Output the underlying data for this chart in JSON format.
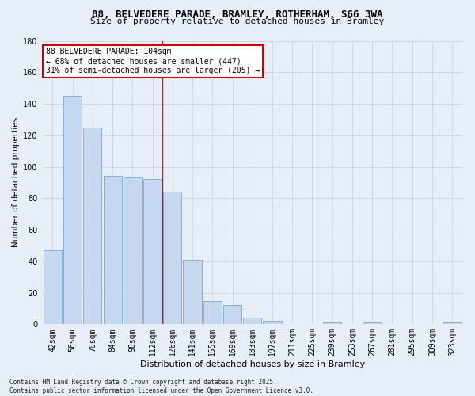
{
  "title1": "88, BELVEDERE PARADE, BRAMLEY, ROTHERHAM, S66 3WA",
  "title2": "Size of property relative to detached houses in Bramley",
  "xlabel": "Distribution of detached houses by size in Bramley",
  "ylabel": "Number of detached properties",
  "categories": [
    "42sqm",
    "56sqm",
    "70sqm",
    "84sqm",
    "98sqm",
    "112sqm",
    "126sqm",
    "141sqm",
    "155sqm",
    "169sqm",
    "183sqm",
    "197sqm",
    "211sqm",
    "225sqm",
    "239sqm",
    "253sqm",
    "267sqm",
    "281sqm",
    "295sqm",
    "309sqm",
    "323sqm"
  ],
  "values": [
    47,
    145,
    125,
    94,
    93,
    92,
    84,
    41,
    15,
    12,
    4,
    2,
    0,
    0,
    1,
    0,
    1,
    0,
    0,
    0,
    1
  ],
  "bar_color": "#c5d8f0",
  "bar_edge_color": "#7aa8d0",
  "grid_color": "#c8d4e4",
  "background_color": "#e8eef8",
  "red_line_x": 5.5,
  "annotation_text": "88 BELVEDERE PARADE: 104sqm\n← 68% of detached houses are smaller (447)\n31% of semi-detached houses are larger (205) →",
  "annotation_box_color": "#ffffff",
  "annotation_box_edge": "#cc0000",
  "footnote": "Contains HM Land Registry data © Crown copyright and database right 2025.\nContains public sector information licensed under the Open Government Licence v3.0.",
  "ylim": [
    0,
    180
  ],
  "yticks": [
    0,
    20,
    40,
    60,
    80,
    100,
    120,
    140,
    160,
    180
  ],
  "title1_fontsize": 9,
  "title2_fontsize": 8,
  "xlabel_fontsize": 8,
  "ylabel_fontsize": 7.5,
  "tick_fontsize": 7,
  "annot_fontsize": 7,
  "footnote_fontsize": 5.5
}
